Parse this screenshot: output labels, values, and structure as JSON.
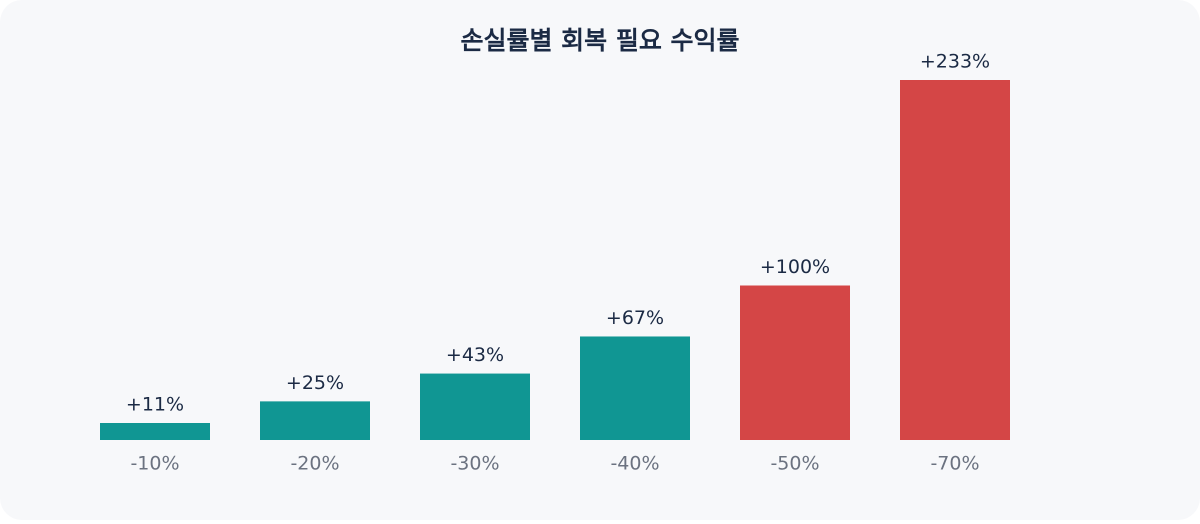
{
  "chart_data": {
    "type": "bar",
    "title": "손실률별 회복 필요 수익률",
    "categories": [
      "-10%",
      "-20%",
      "-30%",
      "-40%",
      "-50%",
      "-70%"
    ],
    "values": [
      11,
      25,
      43,
      67,
      100,
      233
    ],
    "value_labels": [
      "+11%",
      "+25%",
      "+43%",
      "+67%",
      "+100%",
      "+233%"
    ],
    "colors": [
      "#109693",
      "#109693",
      "#109693",
      "#109693",
      "#d44646",
      "#d44646"
    ]
  }
}
